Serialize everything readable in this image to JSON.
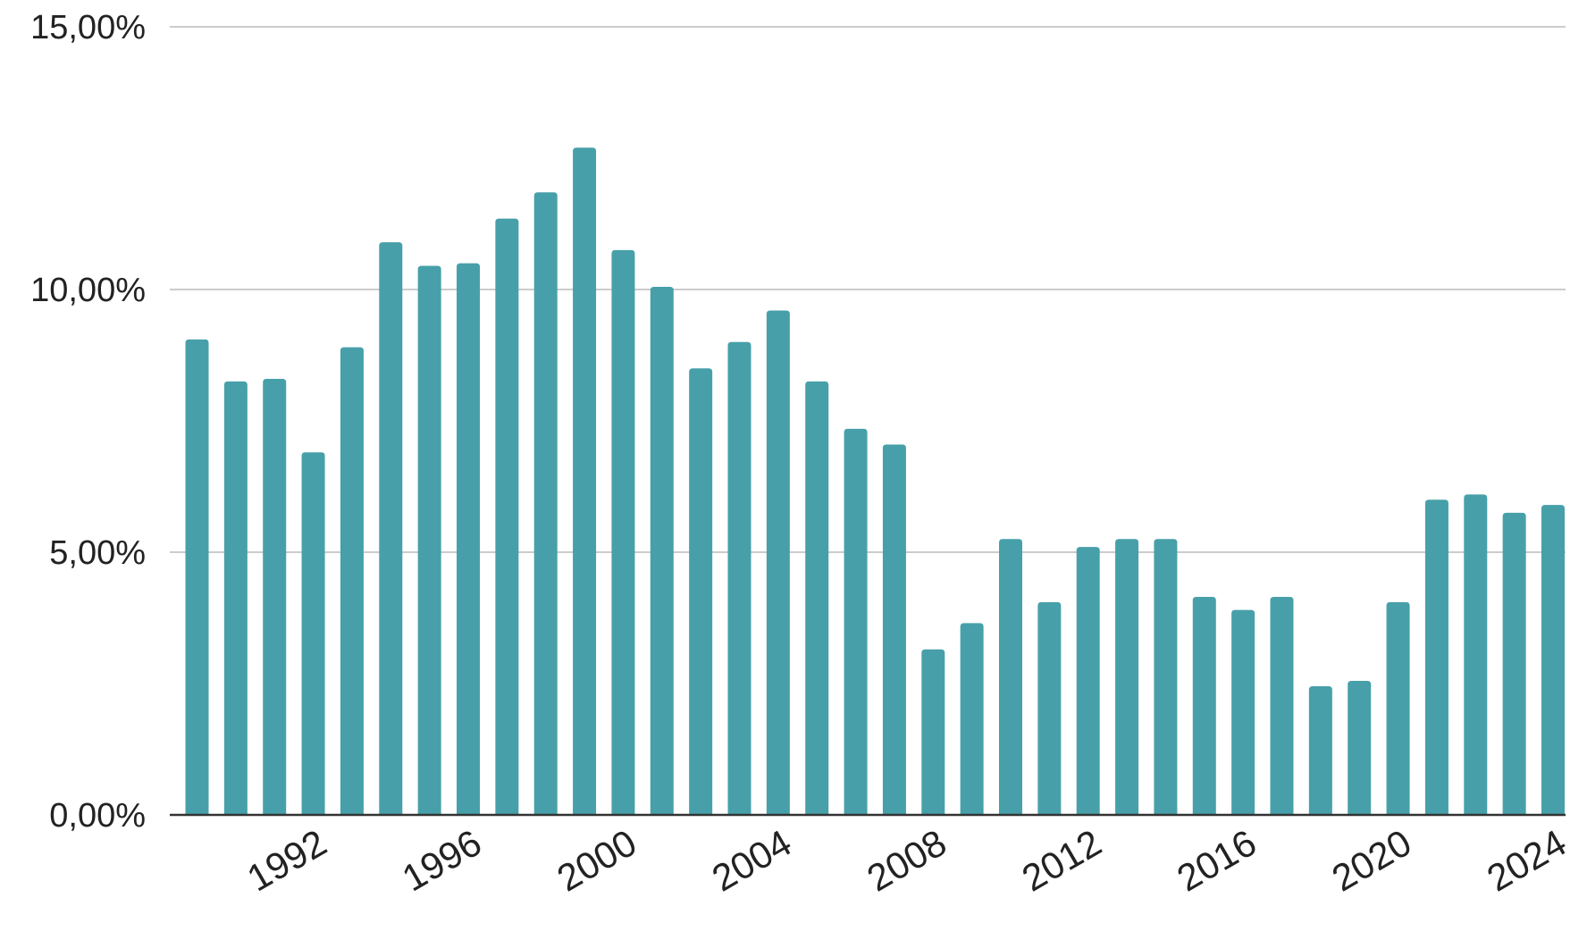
{
  "chart_data": {
    "type": "bar",
    "title": "",
    "xlabel": "",
    "ylabel": "",
    "ylim": [
      0,
      15
    ],
    "grid": true,
    "bar_color": "#47a0a9",
    "categories": [
      "1989",
      "1990",
      "1991",
      "1992",
      "1993",
      "1994",
      "1995",
      "1996",
      "1997",
      "1998",
      "1999",
      "2000",
      "2001",
      "2002",
      "2003",
      "2004",
      "2005",
      "2006",
      "2007",
      "2008",
      "2009",
      "2010",
      "2011",
      "2012",
      "2013",
      "2014",
      "2015",
      "2016",
      "2017",
      "2018",
      "2019",
      "2020",
      "2021",
      "2022",
      "2023",
      "2024"
    ],
    "values": [
      9.05,
      8.25,
      8.3,
      6.9,
      8.9,
      10.9,
      10.45,
      10.5,
      11.35,
      11.85,
      12.7,
      10.75,
      10.05,
      8.5,
      9.0,
      9.6,
      8.25,
      7.35,
      7.05,
      3.15,
      3.65,
      5.25,
      4.05,
      5.1,
      5.25,
      5.25,
      4.15,
      3.9,
      4.15,
      2.45,
      2.55,
      4.05,
      6.0,
      6.1,
      5.75,
      5.9
    ],
    "y_ticks": [
      {
        "value": 0,
        "label": "0,00%"
      },
      {
        "value": 5,
        "label": "5,00%"
      },
      {
        "value": 10,
        "label": "10,00%"
      },
      {
        "value": 15,
        "label": "15,00%"
      }
    ],
    "x_tick_labels": [
      "1992",
      "1996",
      "2000",
      "2004",
      "2008",
      "2012",
      "2016",
      "2020",
      "2024"
    ]
  }
}
